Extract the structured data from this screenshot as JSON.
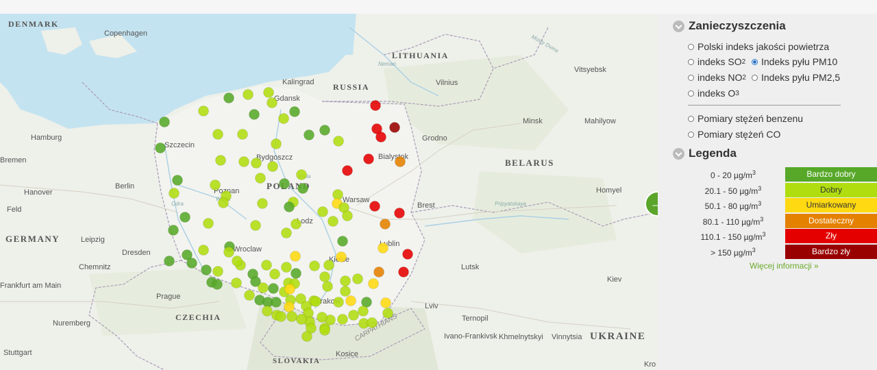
{
  "panel": {
    "pollutants_title": "Zanieczyszczenia",
    "options": [
      {
        "id": "polski",
        "label": "Polski indeks jakości powietrza",
        "sub": "",
        "selected": false
      },
      {
        "id": "so2",
        "label": "indeks SO",
        "sub": "2",
        "selected": false
      },
      {
        "id": "pm10",
        "label": "Indeks pyłu PM10",
        "sub": "",
        "selected": true
      },
      {
        "id": "no2",
        "label": "indeks NO",
        "sub": "2",
        "selected": false
      },
      {
        "id": "pm25",
        "label": "Indeks pyłu PM2,5",
        "sub": "",
        "selected": false
      },
      {
        "id": "o3",
        "label": "indeks O",
        "sub": "3",
        "selected": false
      },
      {
        "id": "benzen",
        "label": "Pomiary stężeń benzenu",
        "sub": "",
        "selected": false
      },
      {
        "id": "co",
        "label": "Pomiary stężeń CO",
        "sub": "",
        "selected": false
      }
    ],
    "legend_title": "Legenda",
    "legend": [
      {
        "range": "0 - 20 µg/m",
        "sup": "3",
        "label": "Bardzo dobry",
        "color": "#57a829",
        "text_color": "#ffffff"
      },
      {
        "range": "20.1 - 50 µg/m",
        "sup": "3",
        "label": "Dobry",
        "color": "#b0dd10",
        "text_color": "#333333"
      },
      {
        "range": "50.1 - 80 µg/m",
        "sup": "3",
        "label": "Umiarkowany",
        "color": "#ffd911",
        "text_color": "#333333"
      },
      {
        "range": "80.1 - 110 µg/m",
        "sup": "3",
        "label": "Dostateczny",
        "color": "#e58100",
        "text_color": "#ffffff"
      },
      {
        "range": "110.1 - 150 µg/m",
        "sup": "3",
        "label": "Zły",
        "color": "#e50000",
        "text_color": "#ffffff"
      },
      {
        "range": "> 150 µg/m",
        "sup": "3",
        "label": "Bardzo zły",
        "color": "#990000",
        "text_color": "#ffffff"
      }
    ],
    "more_link": "Więcej informacji »"
  },
  "map": {
    "countries": [
      "DENMARK",
      "LITHUANIA",
      "RUSSIA",
      "BELARUS",
      "GERMANY",
      "POLAND",
      "CZECHIA",
      "SLOVAKIA",
      "UKRAINE"
    ],
    "cities": [
      "Copenhagen",
      "Kalingrad",
      "Gdansk",
      "Vilnius",
      "Vitsyebsk",
      "Minsk",
      "Mahilyow",
      "Hamburg",
      "Szczecin",
      "Bydgoszcz",
      "Bialystok",
      "Grodno",
      "Bremen",
      "Hanover",
      "Berlin",
      "Poznan",
      "Warsaw",
      "Brest",
      "Homyel",
      "Feld",
      "Leipzig",
      "Lodz",
      "Wroclaw",
      "Lublin",
      "Dresden",
      "Chemnitz",
      "Kielce",
      "Lutsk",
      "Prague",
      "Krakow",
      "Lviv",
      "Ternopil",
      "Nuremberg",
      "Ivano-Frankivsk",
      "Khmelnytskyi",
      "Vinnytsia",
      "Kiev",
      "Kosice",
      "Stuttgart",
      "Frankfurt am Main",
      "Kro"
    ],
    "terrain": [
      "CARPATHIANS",
      "Mosty Dvina",
      "Neman",
      "Wisla",
      "Odra",
      "Warta",
      "Pripyatskaya"
    ]
  }
}
